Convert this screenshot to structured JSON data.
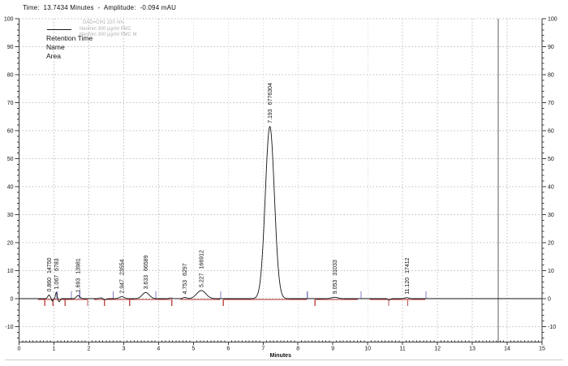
{
  "window": {
    "status_line": "Time:  13.7434 Minutes  -  Amplitude:  -0.094 mAU"
  },
  "legend": {
    "line1": "DAD=CH1 220 nm",
    "line2": "Neomin 300 µg/ml PMC",
    "line3": "Neomin 300 µg/ml PMC M"
  },
  "annotation_headers": {
    "retention_time": "Retention Time",
    "name": "Name",
    "area": "Area"
  },
  "chart_data": {
    "type": "line",
    "title": "",
    "xlabel": "Minutes",
    "ylabel": "mAU",
    "x_range_minutes": [
      0,
      15
    ],
    "y_range_mAU": [
      -15.5,
      100
    ],
    "x_major_tick_labels": [
      "0",
      "1",
      "2",
      "3",
      "4",
      "5",
      "6",
      "7",
      "8",
      "9",
      "10",
      "11",
      "12",
      "13",
      "14",
      "15"
    ],
    "y_major_tick_labels": [
      "100",
      "90",
      "80",
      "70",
      "60",
      "50",
      "40",
      "30",
      "20",
      "10",
      "0",
      "-10"
    ],
    "grid": true,
    "legend_position": "top-left",
    "cursor_time_minutes": 13.7434,
    "cursor_amplitude_mAU": -0.094,
    "trace_color": "#141414",
    "peaks": [
      {
        "retention_time": "0.860",
        "rt_min": 0.86,
        "area": "14750",
        "height_mAU": 1.3,
        "sigma_min": 0.035
      },
      {
        "retention_time": "1.067",
        "rt_min": 1.067,
        "area": "6783",
        "height_mAU": 2.2,
        "sigma_min": 0.022
      },
      {
        "retention_time": "1.693",
        "rt_min": 1.693,
        "area": "13981",
        "height_mAU": 1.1,
        "sigma_min": 0.05
      },
      {
        "retention_time": "2.947",
        "rt_min": 2.947,
        "area": "23554",
        "height_mAU": 0.7,
        "sigma_min": 0.07
      },
      {
        "retention_time": "3.633",
        "rt_min": 3.633,
        "area": "66589",
        "height_mAU": 2.2,
        "sigma_min": 0.1
      },
      {
        "retention_time": "4.753",
        "rt_min": 4.753,
        "area": "6297",
        "height_mAU": 0.45,
        "sigma_min": 0.05
      },
      {
        "retention_time": "5.227",
        "rt_min": 5.227,
        "area": "166912",
        "height_mAU": 2.9,
        "sigma_min": 0.13
      },
      {
        "retention_time": "7.193",
        "rt_min": 7.193,
        "area": "6776304",
        "height_mAU": 61.5,
        "sigma_min": 0.13
      },
      {
        "retention_time": "9.053",
        "rt_min": 9.053,
        "area": "31033",
        "height_mAU": 0.5,
        "sigma_min": 0.09
      },
      {
        "retention_time": "11.120",
        "rt_min": 11.12,
        "area": "17412",
        "height_mAU": 0.35,
        "sigma_min": 0.06
      }
    ],
    "baseline_noise": [
      {
        "rt_min": 0.95,
        "height_mAU": -0.9,
        "sigma_min": 0.02
      },
      {
        "rt_min": 1.15,
        "height_mAU": -1.1,
        "sigma_min": 0.025
      },
      {
        "rt_min": 2.35,
        "height_mAU": 0.3,
        "sigma_min": 0.05
      },
      {
        "rt_min": 2.45,
        "height_mAU": -0.4,
        "sigma_min": 0.04
      },
      {
        "rt_min": 4.35,
        "height_mAU": 0.25,
        "sigma_min": 0.04
      },
      {
        "rt_min": 10.62,
        "height_mAU": -0.5,
        "sigma_min": 0.03
      }
    ],
    "integration": {
      "baseline_y_mAU": 0,
      "baseline_color": "#b03030",
      "baseline_segments_min": [
        [
          0.55,
          1.95
        ],
        [
          2.15,
          4.4
        ],
        [
          4.62,
          5.76
        ],
        [
          5.87,
          8.25
        ],
        [
          8.5,
          9.72
        ],
        [
          10.05,
          11.65
        ]
      ],
      "start_mark_color": "#8080c8",
      "start_marks_min": [
        1.09,
        1.5,
        1.74,
        2.7,
        3.92,
        5.78,
        8.27,
        9.81,
        11.67
      ],
      "end_mark_color": "#c05050",
      "end_marks_min": [
        0.74,
        0.97,
        1.32,
        1.97,
        2.45,
        3.17,
        4.38,
        5.86,
        8.49,
        10.6,
        11.15
      ]
    },
    "colors": {
      "grid": "#bfbfbf",
      "axis": "#3a3a3a",
      "cursor": "#9a9a9a",
      "labels": "#111111",
      "separator": "#cfcfcf"
    }
  }
}
